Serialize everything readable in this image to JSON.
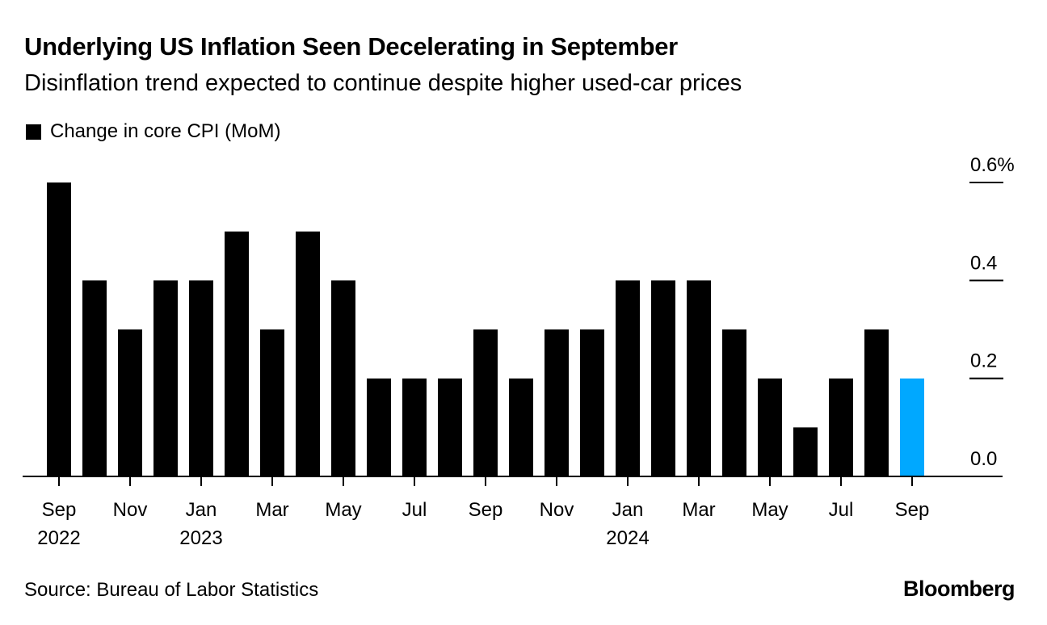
{
  "header": {
    "title": "Underlying US Inflation Seen Decelerating in September",
    "subtitle": "Disinflation trend expected to continue despite higher used-car prices"
  },
  "legend": {
    "label": "Change in core CPI (MoM)"
  },
  "footer": {
    "source": "Source: Bureau of Labor Statistics",
    "brand": "Bloomberg"
  },
  "colors": {
    "bar": "#000000",
    "highlight": "#00a8ff",
    "text": "#000000"
  },
  "chart_data": {
    "type": "bar",
    "series": [
      {
        "name": "Change in core CPI (MoM)",
        "categories": [
          "Sep 2022",
          "Oct 2022",
          "Nov 2022",
          "Dec 2022",
          "Jan 2023",
          "Feb 2023",
          "Mar 2023",
          "Apr 2023",
          "May 2023",
          "Jun 2023",
          "Jul 2023",
          "Aug 2023",
          "Sep 2023",
          "Oct 2023",
          "Nov 2023",
          "Dec 2023",
          "Jan 2024",
          "Feb 2024",
          "Mar 2024",
          "Apr 2024",
          "May 2024",
          "Jun 2024",
          "Jul 2024",
          "Aug 2024",
          "Sep 2024"
        ],
        "values": [
          0.6,
          0.4,
          0.3,
          0.4,
          0.4,
          0.5,
          0.3,
          0.5,
          0.4,
          0.2,
          0.2,
          0.2,
          0.3,
          0.2,
          0.3,
          0.3,
          0.4,
          0.4,
          0.4,
          0.3,
          0.2,
          0.1,
          0.2,
          0.3,
          0.2
        ],
        "highlight_index": 24
      }
    ],
    "x_tick_labels": [
      {
        "index": 0,
        "month": "Sep",
        "year": "2022"
      },
      {
        "index": 2,
        "month": "Nov",
        "year": ""
      },
      {
        "index": 4,
        "month": "Jan",
        "year": "2023"
      },
      {
        "index": 6,
        "month": "Mar",
        "year": ""
      },
      {
        "index": 8,
        "month": "May",
        "year": ""
      },
      {
        "index": 10,
        "month": "Jul",
        "year": ""
      },
      {
        "index": 12,
        "month": "Sep",
        "year": ""
      },
      {
        "index": 14,
        "month": "Nov",
        "year": ""
      },
      {
        "index": 16,
        "month": "Jan",
        "year": "2024"
      },
      {
        "index": 18,
        "month": "Mar",
        "year": ""
      },
      {
        "index": 20,
        "month": "May",
        "year": ""
      },
      {
        "index": 22,
        "month": "Jul",
        "year": ""
      },
      {
        "index": 24,
        "month": "Sep",
        "year": ""
      }
    ],
    "y_ticks": [
      {
        "value": 0.0,
        "label": "0.0"
      },
      {
        "value": 0.2,
        "label": "0.2"
      },
      {
        "value": 0.4,
        "label": "0.4"
      },
      {
        "value": 0.6,
        "label": "0.6%"
      }
    ],
    "ylim": [
      0,
      0.6
    ],
    "y_axis_position": "right",
    "grid": false
  }
}
